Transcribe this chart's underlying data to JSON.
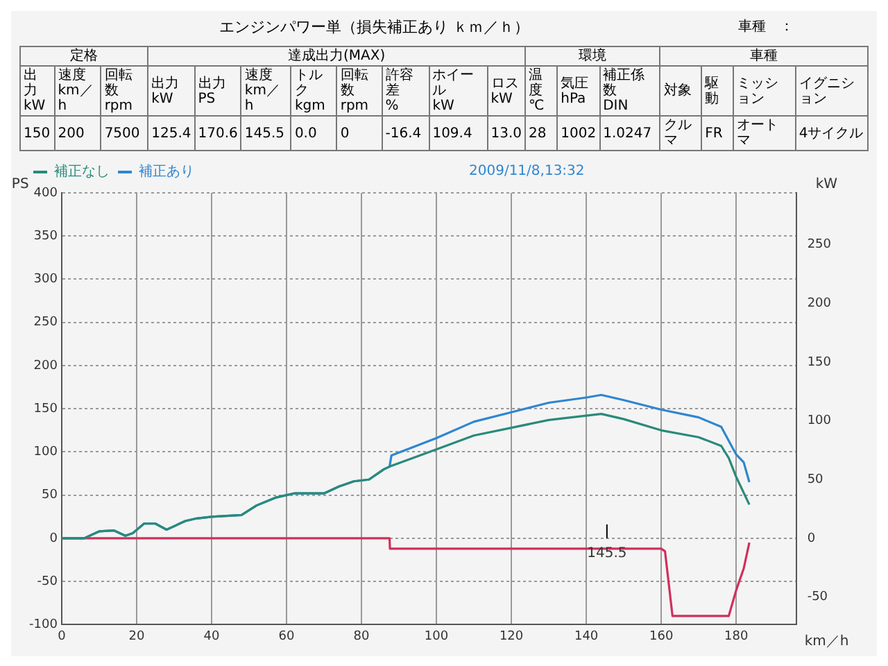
{
  "chart_data": {
    "type": "line",
    "title": "エンジンパワー単（損失補正あり ｋｍ／ｈ）",
    "xlabel": "km／h",
    "ylabel": "PS",
    "y2label": "kW",
    "annotations": [
      "車種　：",
      "2009/11/8,13:32",
      "定格",
      "達成出力(MAX)",
      "環境",
      "車種",
      "出力\nkW",
      "速度\nkm／h",
      "回転数\nrpm",
      "出力\nkW",
      "出力\nPS",
      "速度\nkm／h",
      "トルク\nkgm",
      "回転数\nrpm",
      "許容差\n%",
      "ホイール\nkW",
      "ロス\nkW",
      "温度\n℃",
      "気圧\nhPa",
      "補正係数\nDIN",
      "対象",
      "駆動",
      "ミッション",
      "イグニション",
      "150",
      "200",
      "7500",
      "125.4",
      "170.6",
      "145.5",
      "0.0",
      "0",
      "-16.4",
      "109.4",
      "13.0",
      "28",
      "1002",
      "1.0247",
      "クルマ",
      "FR",
      "オートマ",
      "4サイクル"
    ],
    "ref_lines": [
      {
        "axis": "x",
        "value": 145.5,
        "label": "145.5",
        "color": "#000000"
      }
    ],
    "xlim": [
      0,
      196
    ],
    "xticks": [
      0,
      20,
      40,
      60,
      80,
      100,
      120,
      140,
      160,
      180
    ],
    "ylim": [
      -100,
      400
    ],
    "yticks": [
      -100,
      -50,
      0,
      50,
      100,
      150,
      200,
      250,
      300,
      350,
      400
    ],
    "y2lim": [
      -73.55,
      294.2
    ],
    "y2ticks": [
      -50,
      0,
      50,
      100,
      150,
      200,
      250
    ],
    "grid": true,
    "legend": "top",
    "marker": "none",
    "line_style": "solid",
    "series": [
      {
        "name": "補正なし",
        "color": "#2a8a7a",
        "x": [
          0,
          6,
          10,
          14,
          17,
          19,
          22,
          25,
          28,
          33,
          36,
          40,
          48,
          52,
          57,
          62,
          70,
          74,
          78,
          82,
          86,
          87.5,
          100,
          110,
          120,
          130,
          140,
          144,
          150,
          160,
          170,
          176,
          178,
          180,
          183.5
        ],
        "values": [
          0,
          0,
          8,
          9,
          3,
          6,
          17,
          17,
          10,
          20,
          23,
          25,
          27,
          38,
          47,
          52,
          52,
          60,
          66,
          68,
          80,
          83,
          103,
          119,
          128,
          137,
          142,
          144,
          138,
          125,
          117,
          107,
          93,
          71,
          39
        ]
      },
      {
        "name": "補正あり",
        "color": "#2f86d0",
        "x": [
          0,
          6,
          10,
          14,
          17,
          19,
          22,
          25,
          28,
          33,
          36,
          40,
          48,
          52,
          57,
          62,
          70,
          74,
          78,
          82,
          86,
          87.5,
          88,
          100,
          110,
          120,
          130,
          140,
          144,
          150,
          160,
          170,
          176,
          178,
          180,
          182,
          183.5
        ],
        "values": [
          0,
          0,
          8,
          9,
          3,
          6,
          17,
          17,
          10,
          20,
          23,
          25,
          27,
          38,
          47,
          52,
          52,
          60,
          66,
          68,
          80,
          83,
          96,
          116,
          135,
          146,
          157,
          163,
          166,
          160,
          149,
          140,
          129,
          113,
          97,
          88,
          65
        ]
      },
      {
        "color": "#d0305a",
        "x": [
          0,
          87.5,
          87.6,
          160,
          161,
          163,
          178,
          180,
          182,
          183.5
        ],
        "values": [
          0,
          0,
          -12,
          -12,
          -15,
          -90,
          -90,
          -60,
          -35,
          -5
        ]
      }
    ]
  }
}
